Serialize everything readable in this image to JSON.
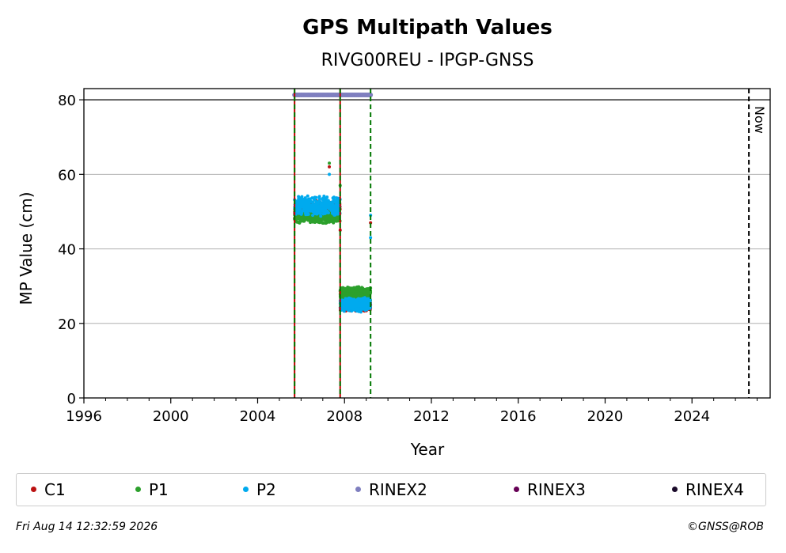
{
  "chart_data": {
    "type": "scatter",
    "title": "GPS Multipath Values",
    "subtitle": "RIVG00REU - IPGP-GNSS",
    "xlabel": "Year",
    "ylabel": "MP Value (cm)",
    "xlim": [
      1996,
      2027.6
    ],
    "ylim": [
      0,
      83
    ],
    "x_ticks": [
      1996,
      2000,
      2004,
      2008,
      2012,
      2016,
      2020,
      2024
    ],
    "y_ticks": [
      0,
      20,
      40,
      60,
      80
    ],
    "grid": "y",
    "threshold_line": 80,
    "now_line": {
      "x": 2026.62,
      "label": "Now"
    },
    "event_lines": [
      {
        "x": 2005.7,
        "colors": [
          "#007700",
          "#bb0000"
        ]
      },
      {
        "x": 2007.8,
        "colors": [
          "#007700",
          "#bb0000"
        ]
      },
      {
        "x": 2009.2,
        "colors": [
          "#007700"
        ]
      }
    ],
    "series": [
      {
        "name": "C1",
        "color": "#bb1111",
        "segments": [
          {
            "x": [
              2005.7,
              2007.8
            ],
            "y_center": 50.5,
            "spread": 2.5
          },
          {
            "x": [
              2007.8,
              2009.2
            ],
            "y_center": 25.0,
            "spread": 1.8
          }
        ],
        "outliers": [
          [
            2007.8,
            45.0
          ],
          [
            2009.2,
            47.0
          ],
          [
            2007.3,
            62.0
          ]
        ]
      },
      {
        "name": "P1",
        "color": "#2ca02c",
        "segments": [
          {
            "x": [
              2005.7,
              2007.8
            ],
            "y_center": 48.5,
            "spread": 1.8
          },
          {
            "x": [
              2007.8,
              2009.2
            ],
            "y_center": 28.0,
            "spread": 2.0
          }
        ],
        "outliers": [
          [
            2007.3,
            63.0
          ],
          [
            2007.8,
            57.0
          ]
        ]
      },
      {
        "name": "P2",
        "color": "#00aaee",
        "segments": [
          {
            "x": [
              2005.7,
              2007.8
            ],
            "y_center": 51.5,
            "spread": 2.8
          },
          {
            "x": [
              2007.8,
              2009.2
            ],
            "y_center": 25.0,
            "spread": 2.0
          }
        ],
        "outliers": [
          [
            2007.3,
            60.0
          ],
          [
            2009.2,
            43.0
          ],
          [
            2009.2,
            49.0
          ]
        ]
      },
      {
        "name": "RINEX2",
        "color": "#7f7fbf",
        "segments": [
          {
            "x": [
              2005.7,
              2009.2
            ],
            "y_center": 81.3,
            "spread": 0
          }
        ]
      },
      {
        "name": "RINEX3",
        "color": "#660055",
        "segments": []
      },
      {
        "name": "RINEX4",
        "color": "#1a0a2a",
        "segments": []
      }
    ]
  },
  "footer": {
    "timestamp": "Fri Aug 14 12:32:59 2026",
    "credit": "©GNSS@ROB"
  }
}
